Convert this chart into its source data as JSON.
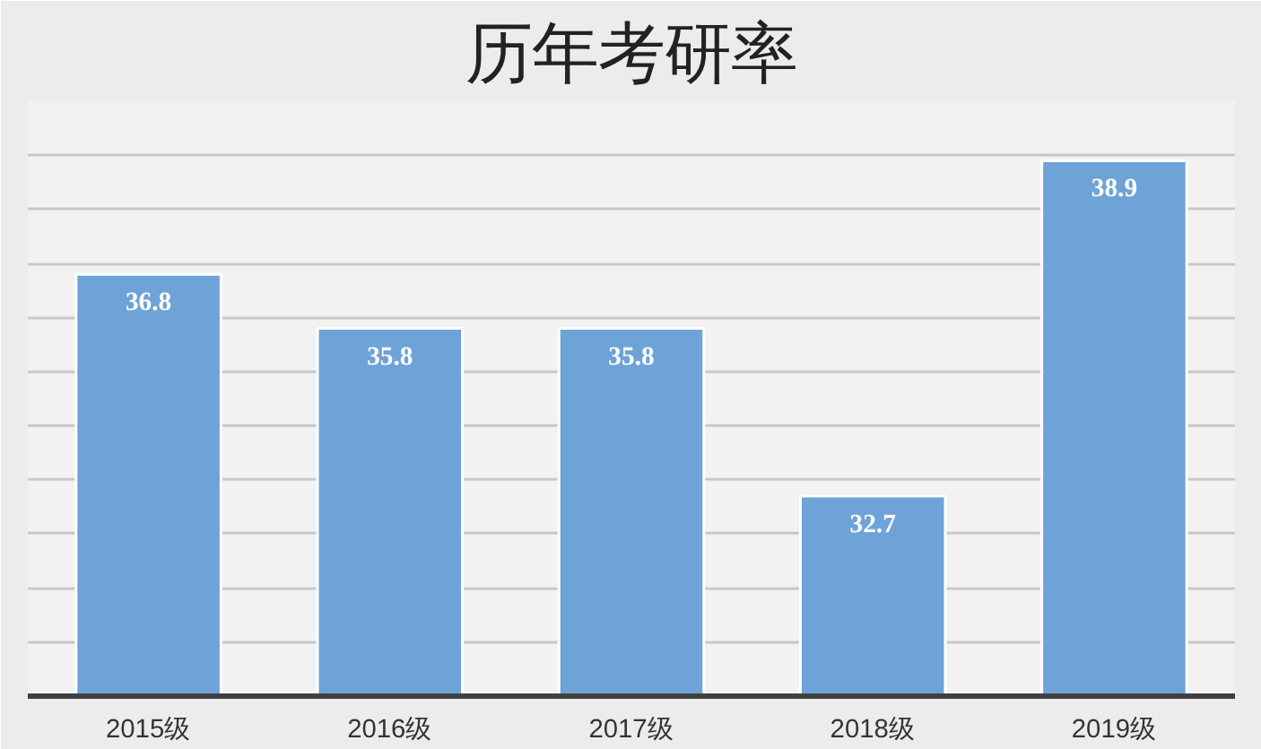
{
  "chart_data": {
    "type": "bar",
    "title": "历年考研率",
    "categories": [
      "2015级",
      "2016级",
      "2017级",
      "2018级",
      "2019级"
    ],
    "values": [
      36.8,
      35.8,
      35.8,
      32.7,
      38.9
    ],
    "color": "#6ea3d7",
    "ylim": [
      29,
      40
    ],
    "yticks": [
      {
        "value": 30,
        "label": null
      },
      {
        "value": 31,
        "label": null
      },
      {
        "value": 32,
        "label": null
      },
      {
        "value": 33,
        "label": null
      },
      {
        "value": 34,
        "label": null
      },
      {
        "value": 35,
        "label": null
      },
      {
        "value": 36,
        "label": null
      },
      {
        "value": 37,
        "label": null
      },
      {
        "value": 38,
        "label": null
      },
      {
        "value": 39,
        "label": null
      },
      {
        "value": 40,
        "label": null
      }
    ],
    "grid": "y",
    "tick_labels": "x",
    "data_labels": true
  }
}
